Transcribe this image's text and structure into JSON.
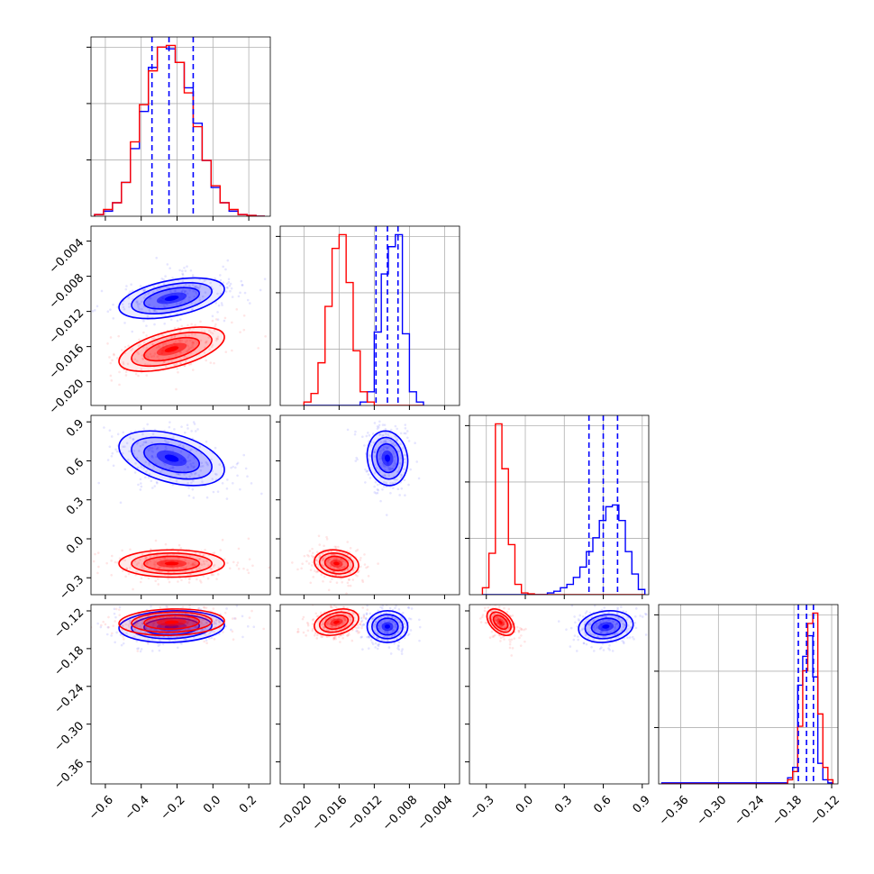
{
  "figure": {
    "type": "corner-plot",
    "n_params": 4
  },
  "chart_data": {
    "type": "scatter",
    "series": [
      {
        "name": "",
        "color": "#0000ff"
      },
      {
        "name": "",
        "color": "#ff0000"
      }
    ],
    "params": [
      {
        "range": [
          -0.68,
          0.32
        ],
        "ticks": [
          -0.6,
          -0.4,
          -0.2,
          0.0,
          0.2
        ],
        "tick_labels": [
          "−0.6",
          "−0.4",
          "−0.2",
          "0.0",
          "0.2"
        ]
      },
      {
        "range": [
          -0.0227,
          -0.0023
        ],
        "ticks": [
          -0.02,
          -0.016,
          -0.012,
          -0.008,
          -0.004
        ],
        "tick_labels": [
          "−0.020",
          "−0.016",
          "−0.012",
          "−0.008",
          "−0.004"
        ]
      },
      {
        "range": [
          -0.43,
          0.95
        ],
        "ticks": [
          -0.3,
          0.0,
          0.3,
          0.6,
          0.9
        ],
        "tick_labels": [
          "−0.3",
          "0.0",
          "0.3",
          "0.6",
          "0.9"
        ]
      },
      {
        "range": [
          -0.395,
          -0.11
        ],
        "ticks": [
          -0.36,
          -0.3,
          -0.24,
          -0.18,
          -0.12
        ],
        "tick_labels": [
          "−0.36",
          "−0.30",
          "−0.24",
          "−0.18",
          "−0.12"
        ]
      }
    ],
    "quantiles": [
      [
        -0.34,
        -0.245,
        -0.11
      ],
      [
        -0.0118,
        -0.0105,
        -0.0093
      ],
      [
        0.49,
        0.6,
        0.71
      ],
      [
        -0.173,
        -0.16,
        -0.149
      ]
    ],
    "distributions": {
      "blue": {
        "mean": [
          -0.23,
          -0.0105,
          0.62,
          -0.145
        ],
        "sd": [
          0.14,
          0.0011,
          0.1,
          0.012
        ]
      },
      "red": {
        "mean": [
          -0.23,
          -0.0163,
          -0.19,
          -0.138
        ],
        "sd": [
          0.14,
          0.0012,
          0.05,
          0.01
        ]
      }
    },
    "histograms": [
      {
        "param": 0,
        "edges": [
          -0.66,
          -0.61,
          -0.56,
          -0.51,
          -0.46,
          -0.41,
          -0.36,
          -0.31,
          -0.26,
          -0.21,
          -0.16,
          -0.11,
          -0.06,
          -0.01,
          0.04,
          0.09,
          0.14,
          0.19,
          0.24,
          0.29
        ],
        "blue": [
          1,
          3,
          8,
          20,
          40,
          62,
          88,
          100,
          99,
          91,
          76,
          55,
          33,
          17,
          8,
          3,
          1,
          0.5,
          0
        ],
        "red": [
          1,
          4,
          8,
          20,
          44,
          66,
          86,
          100,
          101,
          91,
          73,
          53,
          33,
          18,
          8,
          4,
          1,
          0.5,
          0
        ]
      },
      {
        "param": 1,
        "edges": [
          -0.02,
          -0.0192,
          -0.0184,
          -0.0176,
          -0.0168,
          -0.016,
          -0.0152,
          -0.0144,
          -0.0136,
          -0.0128,
          -0.012,
          -0.0112,
          -0.0104,
          -0.0096,
          -0.0088,
          -0.008,
          -0.0072,
          -0.0064
        ],
        "blue": [
          0,
          0,
          0,
          0,
          0,
          0,
          0,
          0,
          2,
          8,
          43,
          77,
          93,
          100,
          42,
          8,
          2
        ],
        "red": [
          2,
          7,
          25,
          58,
          92,
          100,
          72,
          32,
          8,
          2,
          0,
          0,
          0,
          0,
          0,
          0,
          0
        ]
      },
      {
        "param": 2,
        "edges": [
          -0.33,
          -0.28,
          -0.23,
          -0.18,
          -0.13,
          -0.08,
          -0.03,
          0.02,
          0.07,
          0.12,
          0.17,
          0.22,
          0.27,
          0.32,
          0.37,
          0.42,
          0.47,
          0.52,
          0.57,
          0.62,
          0.67,
          0.72,
          0.77,
          0.82,
          0.87,
          0.92
        ],
        "blue": [
          0,
          0,
          0,
          0,
          0,
          0,
          0,
          0,
          0,
          0,
          1,
          2,
          4,
          6,
          10,
          16,
          25,
          33,
          43,
          51,
          52,
          43,
          25,
          12,
          3
        ],
        "red": [
          4,
          24,
          99,
          73,
          29,
          6,
          1,
          0.5,
          0,
          0,
          0,
          0,
          0,
          0,
          0,
          0,
          0,
          0,
          0,
          0,
          0,
          0,
          0,
          0,
          0
        ]
      },
      {
        "param": 3,
        "edges": [
          -0.39,
          -0.382,
          -0.374,
          -0.366,
          -0.358,
          -0.35,
          -0.342,
          -0.334,
          -0.326,
          -0.318,
          -0.31,
          -0.302,
          -0.294,
          -0.286,
          -0.278,
          -0.27,
          -0.262,
          -0.254,
          -0.246,
          -0.238,
          -0.23,
          -0.222,
          -0.214,
          -0.206,
          -0.198,
          -0.19,
          -0.182,
          -0.174,
          -0.166,
          -0.158,
          -0.15,
          -0.142,
          -0.134,
          -0.126,
          -0.118
        ],
        "blue": [
          0.5,
          0.5,
          0.5,
          0.5,
          0.5,
          0.5,
          0.5,
          0.5,
          0.5,
          0.5,
          0.5,
          0.5,
          0.5,
          0.5,
          0.5,
          0.5,
          0.5,
          0.5,
          0.5,
          0.5,
          0.5,
          0.5,
          0.5,
          0.5,
          0.5,
          3,
          8,
          48,
          62,
          72,
          52,
          10,
          2,
          0.5
        ],
        "red": [
          0,
          0,
          0,
          0,
          0,
          0,
          0,
          0,
          0,
          0,
          0,
          0,
          0,
          0,
          0,
          0,
          0,
          0,
          0,
          0,
          0,
          0,
          0,
          0,
          0,
          2,
          6,
          28,
          55,
          78,
          83,
          34,
          8,
          2
        ]
      }
    ]
  }
}
